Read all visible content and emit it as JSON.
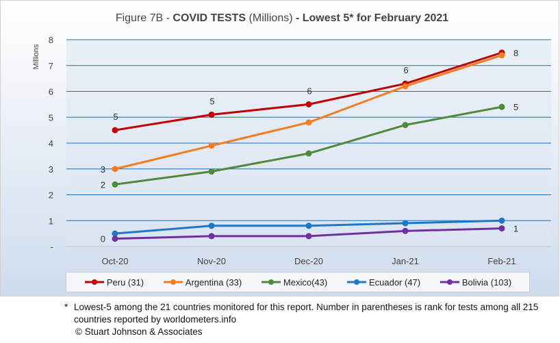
{
  "title": {
    "prefix": "Figure 7B - ",
    "bold1": "COVID TESTS",
    "middle": " (Millions) ",
    "bold2": "- Lowest 5* for February 2021"
  },
  "footnote": {
    "star": "*",
    "line1": "Lowest-5 among the 21 countries monitored for this report. Number in parentheses is rank for tests among all 215",
    "line2": "countries reported by worldometers.info",
    "copyright": "© Stuart Johnson & Associates"
  },
  "chart_data": {
    "type": "line",
    "x": [
      "Oct-20",
      "Nov-20",
      "Dec-20",
      "Jan-21",
      "Feb-21"
    ],
    "ylabel": "Millions",
    "ylim": [
      0,
      8
    ],
    "yticks": [
      "-",
      "1",
      "2",
      "3",
      "4",
      "5",
      "6",
      "7",
      "8"
    ],
    "grid": true,
    "legend_position": "bottom",
    "series": [
      {
        "name": "Peru (31)",
        "color": "#c00000",
        "values": [
          4.5,
          5.1,
          5.5,
          6.3,
          7.5
        ],
        "labels": [
          "5",
          "5",
          "6",
          "6",
          "8"
        ]
      },
      {
        "name": "Argentina (33)",
        "color": "#f47c20",
        "values": [
          3.0,
          3.9,
          4.8,
          6.2,
          7.4
        ],
        "labels": [
          "3",
          "",
          "",
          "",
          ""
        ]
      },
      {
        "name": "Mexico(43)",
        "color": "#4f8a3a",
        "values": [
          2.4,
          2.9,
          3.6,
          4.7,
          5.4
        ],
        "labels": [
          "2",
          "",
          "",
          "",
          "5"
        ]
      },
      {
        "name": "Ecuador (47)",
        "color": "#1f77c8",
        "values": [
          0.5,
          0.8,
          0.8,
          0.9,
          1.0
        ],
        "labels": [
          "",
          "",
          "",
          "",
          ""
        ]
      },
      {
        "name": "Bolivia (103)",
        "color": "#7030a0",
        "values": [
          0.3,
          0.4,
          0.4,
          0.6,
          0.7
        ],
        "labels": [
          "0",
          "",
          "",
          "",
          "1"
        ]
      }
    ]
  }
}
